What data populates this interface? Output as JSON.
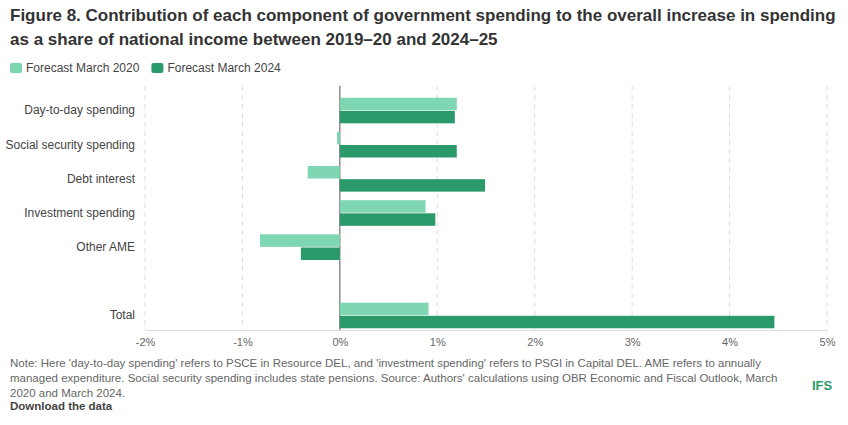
{
  "chart_data": {
    "type": "bar",
    "orientation": "horizontal",
    "title": "Figure 8. Contribution of each component of government spending to the overall increase in spending as a share of national income between 2019–20 and 2024–25",
    "note": "Note: Here 'day-to-day spending' refers to PSCE in Resource DEL, and 'investment spending' refers to PSGI in Capital DEL. AME refers to annually managed expenditure. Social security spending includes state pensions. Source: Authors' calculations using OBR Economic and Fiscal Outlook, March 2020 and March 2024.",
    "annotations": [
      "Download the data",
      "IFS"
    ],
    "categories": [
      "Day-to-day spending",
      "Social security spending",
      "Debt interest",
      "Investment spending",
      "Other AME",
      null,
      "Total"
    ],
    "series": [
      {
        "name": "Forecast March 2020",
        "color": "#7fd6b3",
        "values": [
          1.2,
          -0.03,
          -0.33,
          0.88,
          -0.82,
          null,
          0.91
        ]
      },
      {
        "name": "Forecast March 2024",
        "color": "#2b9a6a",
        "values": [
          1.18,
          1.2,
          1.49,
          0.98,
          -0.4,
          null,
          4.46
        ]
      }
    ],
    "xlim": [
      -2,
      5
    ],
    "xticks": [
      {
        "value": -2,
        "label": "-2%"
      },
      {
        "value": -1,
        "label": "-1%"
      },
      {
        "value": 0,
        "label": "0%"
      },
      {
        "value": 1,
        "label": "1%"
      },
      {
        "value": 2,
        "label": "2%"
      },
      {
        "value": 3,
        "label": "3%"
      },
      {
        "value": 4,
        "label": "4%"
      },
      {
        "value": 5,
        "label": "5%"
      }
    ],
    "grid": true,
    "legend": "top-left"
  }
}
